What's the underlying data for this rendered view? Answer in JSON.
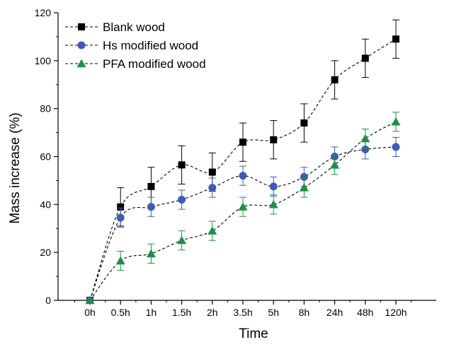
{
  "chart_data": {
    "type": "line",
    "title": "",
    "xlabel": "Time",
    "ylabel": "Mass increase (%)",
    "categories": [
      "0h",
      "0.5h",
      "1h",
      "1.5h",
      "2h",
      "3.5h",
      "5h",
      "8h",
      "24h",
      "48h",
      "120h"
    ],
    "ylim": [
      0,
      120
    ],
    "y_ticks": [
      0,
      20,
      40,
      60,
      80,
      100,
      120
    ],
    "grid": false,
    "legend_position": "top-left",
    "series": [
      {
        "name": "Blank wood",
        "marker": "square",
        "color": "#000000",
        "values": [
          0,
          39,
          47.5,
          56.5,
          53.5,
          66,
          67,
          74,
          92,
          101,
          109
        ],
        "errors": [
          0,
          8,
          8,
          8,
          8,
          8,
          8,
          8,
          8,
          8,
          8
        ]
      },
      {
        "name": "Hs modified wood",
        "marker": "circle",
        "color": "#3d5bb5",
        "values": [
          0,
          34.5,
          39,
          42,
          47,
          52,
          47.5,
          51.5,
          60,
          63,
          64
        ],
        "errors": [
          0,
          4,
          4,
          4,
          4,
          4,
          4,
          4,
          4,
          4,
          4
        ]
      },
      {
        "name": "PFA modified wood",
        "marker": "triangle",
        "color": "#1f8f47",
        "values": [
          0,
          16.5,
          19.5,
          25,
          29,
          39,
          40,
          47,
          56.5,
          67.5,
          74.5
        ],
        "errors": [
          0,
          4,
          4,
          4,
          4,
          4,
          4,
          4,
          4,
          4,
          4
        ]
      }
    ]
  }
}
